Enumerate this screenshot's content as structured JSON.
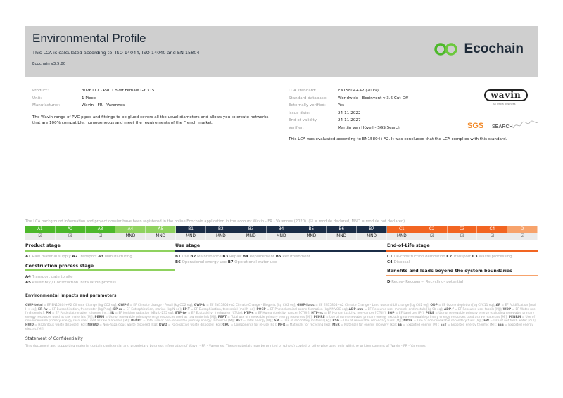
{
  "header": {
    "title": "Environmental Profile",
    "subtitle": "This LCA is calculated according to: ISO 14044, ISO 14040 and EN 15804",
    "version": "Ecochain v3.5.80",
    "logo": "Ecochain"
  },
  "product": [
    {
      "label": "Product:",
      "value": "3026117 - PVC Cover Female GY 315"
    },
    {
      "label": "Unit:",
      "value": "1 Piece"
    },
    {
      "label": "Manufacturer:",
      "value": "Wavin - FR - Varennes"
    }
  ],
  "description": "The Wavin range of PVC pipes and fittings to be glued covers all the usual diameters and allows you to create networks that are 100% compatible, homogeneous and meet the requirements of the French market.",
  "lca": [
    {
      "label": "LCA standard:",
      "value": "EN15804+A2 (2019)"
    },
    {
      "label": "Standard database:",
      "value": "Worldwide - Ecoinvent v 3.6 Cut-Off"
    },
    {
      "label": "Externally verified:",
      "value": "Yes"
    },
    {
      "label": "Issue date:",
      "value": "24-11-2022"
    },
    {
      "label": "End of validity:",
      "value": "24-11-2027"
    },
    {
      "label": "Verifier:",
      "value": "Martijn van Hövell - SGS Search"
    }
  ],
  "compliance": "This LCA was evaluated according to EN15804+A2. It was concluded that the LCA complies with this standard.",
  "logos": {
    "wavin": "wavin",
    "wavin_tag": "An Orbia business",
    "sgs": "SGS",
    "search": "SEARCH"
  },
  "registration": "The LCA background information and project dossier have been registered in the online Ecochain application in the account Wavin - FR - Varennes (2020). (☑ = module declared, MND = module not declared).",
  "modules": [
    {
      "code": "A1",
      "status": "☑",
      "color": "#4db82b"
    },
    {
      "code": "A2",
      "status": "☑",
      "color": "#4db82b"
    },
    {
      "code": "A3",
      "status": "☑",
      "color": "#4db82b"
    },
    {
      "code": "A4",
      "status": "MND",
      "color": "#8fd25f"
    },
    {
      "code": "A5",
      "status": "MND",
      "color": "#8fd25f"
    },
    {
      "code": "B1",
      "status": "MND",
      "color": "#1b2d47"
    },
    {
      "code": "B2",
      "status": "MND",
      "color": "#1b2d47"
    },
    {
      "code": "B3",
      "status": "MND",
      "color": "#1b2d47"
    },
    {
      "code": "B4",
      "status": "MND",
      "color": "#1b2d47"
    },
    {
      "code": "B5",
      "status": "MND",
      "color": "#1b2d47"
    },
    {
      "code": "B6",
      "status": "MND",
      "color": "#1b2d47"
    },
    {
      "code": "B7",
      "status": "MND",
      "color": "#1b2d47"
    },
    {
      "code": "C1",
      "status": "MND",
      "color": "#f26522"
    },
    {
      "code": "C2",
      "status": "☑",
      "color": "#f26522"
    },
    {
      "code": "C3",
      "status": "☑",
      "color": "#f26522"
    },
    {
      "code": "C4",
      "status": "☑",
      "color": "#f26522"
    },
    {
      "code": "D",
      "status": "☑",
      "color": "#f7a36c"
    }
  ],
  "stages": {
    "product": {
      "title": "Product stage",
      "items": [
        [
          "A1",
          "Raw material supply"
        ],
        [
          "A2",
          "Transport"
        ],
        [
          "A3",
          "Manufacturing"
        ]
      ]
    },
    "construction": {
      "title": "Construction process stage",
      "items": [
        [
          "A4",
          "Transport gate to site"
        ],
        [
          "A5",
          "Assembly / Construction installation process"
        ]
      ]
    },
    "use": {
      "title": "Use stage",
      "items": [
        [
          "B1",
          "Use"
        ],
        [
          "B2",
          "Maintenance"
        ],
        [
          "B3",
          "Repair"
        ],
        [
          "B4",
          "Replacement"
        ],
        [
          "B5",
          "Refurbishment"
        ],
        [
          "B6",
          "Operational energy use"
        ],
        [
          "B7",
          "Operational water use"
        ]
      ]
    },
    "eol": {
      "title": "End-of-Life stage",
      "items": [
        [
          "C1",
          "De-construction demolition"
        ],
        [
          "C2",
          "Transport"
        ],
        [
          "C3",
          "Waste processing"
        ],
        [
          "C4",
          "Disposal"
        ]
      ]
    },
    "beyond": {
      "title": "Benefits and loads beyond the system boundaries",
      "items": [
        [
          "D",
          "Reuse- Recovery- Recycling- potential"
        ]
      ]
    }
  },
  "impacts_title": "Environmental impacts and parameters",
  "abbreviations": [
    [
      "GWP-total",
      "EF EN15804+A2 Climate Change [kg CO2 eq]"
    ],
    [
      "GWP-f",
      "EF Climate change - Fossil [kg CO2 eq]"
    ],
    [
      "GWP-b",
      "EF EN15804+A2 Climate Change - Biogenic [kg CO2 eq]"
    ],
    [
      "GWP-luluc",
      "EF EN15804+A2 Climate Change - Land use and LU change [kg CO2 eq]"
    ],
    [
      "ODP",
      "EF Ozone depletion [kg CFC11 eq]"
    ],
    [
      "AP",
      "EF Acidification [mol H+ eq]"
    ],
    [
      "EP-fw",
      "EF Eutrophication, freshwater [kg P eq]"
    ],
    [
      "EP-m",
      "EF Eutrophication, marine [kg N eq]"
    ],
    [
      "EP-T",
      "EF Eutrophication, terrestrial [mol N eq]"
    ],
    [
      "POCP",
      "EF Photochemical ozone formation [kg NMVOC eq]"
    ],
    [
      "ADP-mm",
      "EF Resource use, minerals and metals [kg Sb eq]"
    ],
    [
      "ADP-f",
      "EF Resource use, fossils [MJ]"
    ],
    [
      "WDP",
      "EF Water use [m3 depriv.]"
    ],
    [
      "PM",
      "EF Particulate matter [disease inc.]"
    ],
    [
      "IR",
      "EF Ionising radiation [kBq U-235 eq]"
    ],
    [
      "ETP-fw",
      "EF Ecotoxicity, freshwater [CTUe]"
    ],
    [
      "HTP-c",
      "EF Human toxicity, cancer [CTUh]"
    ],
    [
      "HTP-nc",
      "EF Human toxicity, non-cancer [CTUh]"
    ],
    [
      "SQP",
      "EF Land use [Pt]"
    ],
    [
      "PERE",
      "Use of renewable primary energy excluding renewable primary energy resources used as raw materials [MJ]"
    ],
    [
      "PERM",
      "Use of renewable primary energy resources used as raw materials [MJ]"
    ],
    [
      "PERT",
      "Total use of renewable primary energy resources [MJ]"
    ],
    [
      "PENRE",
      "Use of non-renewable primary energy excluding non-renewable primary energy resources used as raw materials [MJ]"
    ],
    [
      "PENRM",
      "Use of non-renewable primary energy resources used as raw materials [MJ]"
    ],
    [
      "PENRT",
      "Total use of non-renewable primary energy resources [MJ]"
    ],
    [
      "PET",
      "Total energy [MJ]"
    ],
    [
      "SM",
      "Use of secondary material [kg]"
    ],
    [
      "RSF",
      "Use of renewable secondary fuels [MJ]"
    ],
    [
      "NRSF",
      "Use of non-renewable secondary fuels [MJ]"
    ],
    [
      "FW",
      "Use of net fresh water [m3]"
    ],
    [
      "HWD",
      "Hazardous waste disposed [kg]"
    ],
    [
      "NHWD",
      "Non-hazardous waste disposed [kg]"
    ],
    [
      "RWD",
      "Radioactive waste disposed [kg]"
    ],
    [
      "CRU",
      "Components for re-use [kg]"
    ],
    [
      "MFR",
      "Materials for recycling [kg]"
    ],
    [
      "MER",
      "Materials for energy recovery [kg]"
    ],
    [
      "EE",
      "Exported energy [MJ]"
    ],
    [
      "EET",
      "Exported energy thermic [MJ]"
    ],
    [
      "EEE",
      "Exported energy electric [MJ]"
    ]
  ],
  "confidentiality": {
    "title": "Statement of Confidentiality",
    "text": "This document and supporting material contain confidential and proprietary business information of Wavin - FR - Varennes. These materials may be printed or (photo) copied or otherwise used only with the written consent of Wavin - FR - Varennes."
  }
}
